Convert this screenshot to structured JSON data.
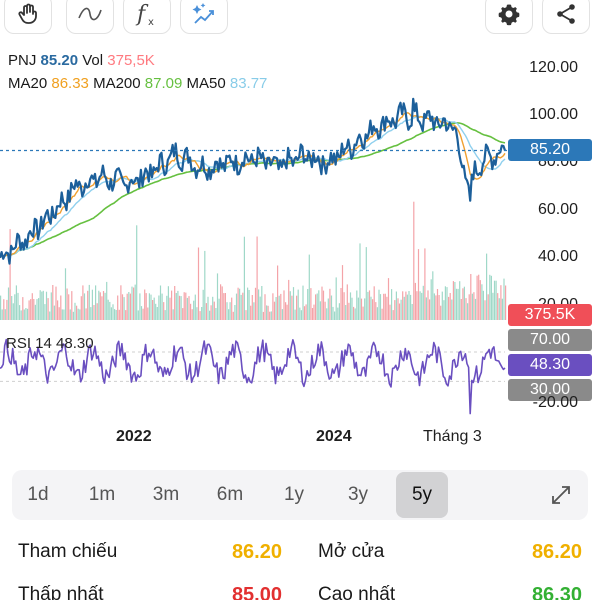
{
  "toolbar": {
    "icons": [
      "hand-icon",
      "curve-icon",
      "function-icon",
      "magic-icon",
      "gear-icon",
      "share-icon"
    ]
  },
  "legend": {
    "symbol": "PNJ",
    "price": "85.20",
    "vol_label": "Vol",
    "vol_value": "375,5K",
    "ma20_label": "MA20",
    "ma20_value": "86.33",
    "ma200_label": "MA200",
    "ma200_value": "87.09",
    "ma50_label": "MA50",
    "ma50_value": "83.77"
  },
  "price_axis": [
    "120.00",
    "100.00",
    "80.00",
    "60.00",
    "40.00",
    "20.00"
  ],
  "badges": {
    "price": "85.20",
    "volume": "375.5K",
    "rsi_high": "70.00",
    "rsi_value": "48.30",
    "rsi_low": "30.00"
  },
  "rsi": {
    "label": "RSI 14 48.30",
    "lower_axis": "-20.00"
  },
  "x_axis": [
    "2022",
    "2024",
    "Tháng 3"
  ],
  "ranges": [
    {
      "label": "1d",
      "active": false
    },
    {
      "label": "1m",
      "active": false
    },
    {
      "label": "3m",
      "active": false
    },
    {
      "label": "6m",
      "active": false
    },
    {
      "label": "1y",
      "active": false
    },
    {
      "label": "3y",
      "active": false
    },
    {
      "label": "5y",
      "active": true
    }
  ],
  "stats": {
    "ref_label": "Tham chiếu",
    "ref_value": "86.20",
    "open_label": "Mở cửa",
    "open_value": "86.20",
    "low_label": "Thấp nhất",
    "low_value": "85.00",
    "high_label": "Cao nhất",
    "high_value": "86.30"
  },
  "colors": {
    "price_line": "#1c5f9a",
    "ma20": "#f0a030",
    "ma50": "#8fd0ee",
    "ma200": "#66c040",
    "rsi": "#6a4fc0",
    "price_badge": "#2c78b8",
    "volume_badge": "#f04f58",
    "rsi_band_badge": "#8a8a8a",
    "rsi_badge": "#6a4fc0",
    "ref_value": "#f0b000",
    "low_value": "#e23030",
    "high_value": "#33b033"
  },
  "chart_data": {
    "type": "line",
    "price_range": [
      20,
      120
    ],
    "current_price": 85.2,
    "x_labels": [
      "2022",
      "2024",
      "Tháng 3"
    ],
    "price_anchors": [
      [
        0,
        40
      ],
      [
        0.05,
        48
      ],
      [
        0.1,
        58
      ],
      [
        0.15,
        70
      ],
      [
        0.2,
        74
      ],
      [
        0.25,
        71
      ],
      [
        0.3,
        76
      ],
      [
        0.35,
        84
      ],
      [
        0.4,
        78
      ],
      [
        0.45,
        80
      ],
      [
        0.5,
        82
      ],
      [
        0.55,
        78
      ],
      [
        0.6,
        83
      ],
      [
        0.65,
        80
      ],
      [
        0.7,
        88
      ],
      [
        0.75,
        96
      ],
      [
        0.8,
        100
      ],
      [
        0.85,
        98
      ],
      [
        0.9,
        95
      ],
      [
        0.925,
        70
      ],
      [
        0.95,
        80
      ],
      [
        1.0,
        86
      ]
    ],
    "rsi_range": [
      -20,
      100
    ],
    "rsi_bands": [
      30,
      70
    ],
    "rsi_current": 48.3,
    "volume_current": "375.5K"
  }
}
